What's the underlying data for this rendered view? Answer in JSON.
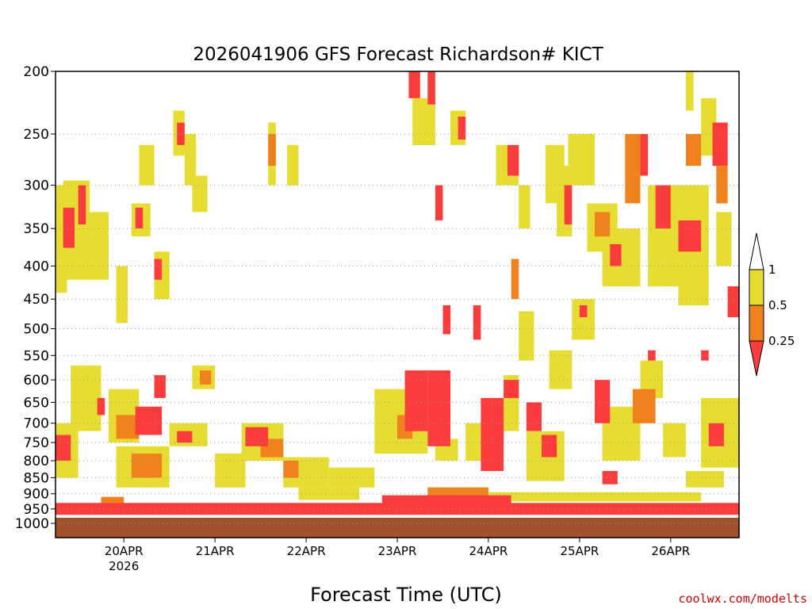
{
  "chart_data": {
    "type": "heatmap",
    "title": "2026041906 GFS Forecast Richardson# KICT",
    "xlabel": "Forecast Time (UTC)",
    "ylabel": "",
    "credit": "coolwx.com/modelts",
    "y_ticks": [
      "200",
      "250",
      "300",
      "350",
      "400",
      "450",
      "500",
      "550",
      "600",
      "650",
      "700",
      "750",
      "800",
      "850",
      "900",
      "950",
      "1000"
    ],
    "x_ticks": [
      {
        "label": "20APR",
        "sublabel": "2026",
        "hour": 24
      },
      {
        "label": "21APR",
        "sublabel": "",
        "hour": 48
      },
      {
        "label": "22APR",
        "sublabel": "",
        "hour": 72
      },
      {
        "label": "23APR",
        "sublabel": "",
        "hour": 96
      },
      {
        "label": "24APR",
        "sublabel": "",
        "hour": 120
      },
      {
        "label": "25APR",
        "sublabel": "",
        "hour": 144
      },
      {
        "label": "26APR",
        "sublabel": "",
        "hour": 168
      }
    ],
    "x_range_hours": [
      6,
      186
    ],
    "y_range_hpa": [
      200,
      1000
    ],
    "grid": "dotted at labeled pressure levels",
    "colorbar": {
      "placement": "right",
      "ticks": [
        "1",
        "0.5",
        "0.25"
      ],
      "bins": [
        {
          "range": "> 1",
          "color": "#ffffff"
        },
        {
          "range": "0.5 - 1",
          "color": "#e6dc32"
        },
        {
          "range": "0.25 - 0.5",
          "color": "#f0821e"
        },
        {
          "range": "< 0.25",
          "color": "#fa3c3c"
        }
      ]
    },
    "colors": {
      "surface": "#a0522d",
      "ri_0_5_to_1": "#e6dc32",
      "ri_0_25_to_0_5": "#f0821e",
      "ri_below_0_25": "#fa3c3c",
      "credit_text": "#cc0000"
    },
    "regions": [
      {
        "bin": "0.5 - 1",
        "hours": [
          6,
          9
        ],
        "hpa": [
          300,
          440
        ]
      },
      {
        "bin": "0.5 - 1",
        "hours": [
          8,
          15
        ],
        "hpa": [
          295,
          420
        ]
      },
      {
        "bin": "< 0.25",
        "hours": [
          8,
          11
        ],
        "hpa": [
          325,
          375
        ]
      },
      {
        "bin": "< 0.25",
        "hours": [
          12,
          14
        ],
        "hpa": [
          300,
          345
        ]
      },
      {
        "bin": "0.5 - 1",
        "hours": [
          15,
          20
        ],
        "hpa": [
          330,
          420
        ]
      },
      {
        "bin": "0.5 - 1",
        "hours": [
          22,
          25
        ],
        "hpa": [
          400,
          490
        ]
      },
      {
        "bin": "0.5 - 1",
        "hours": [
          26,
          31
        ],
        "hpa": [
          320,
          360
        ]
      },
      {
        "bin": "< 0.25",
        "hours": [
          27,
          29
        ],
        "hpa": [
          325,
          350
        ]
      },
      {
        "bin": "0.5 - 1",
        "hours": [
          28,
          32
        ],
        "hpa": [
          260,
          300
        ]
      },
      {
        "bin": "0.5 - 1",
        "hours": [
          32,
          36
        ],
        "hpa": [
          380,
          450
        ]
      },
      {
        "bin": "< 0.25",
        "hours": [
          32,
          34
        ],
        "hpa": [
          390,
          420
        ]
      },
      {
        "bin": "0.5 - 1",
        "hours": [
          37,
          40
        ],
        "hpa": [
          230,
          270
        ]
      },
      {
        "bin": "< 0.25",
        "hours": [
          38,
          40
        ],
        "hpa": [
          240,
          260
        ]
      },
      {
        "bin": "0.5 - 1",
        "hours": [
          40,
          43
        ],
        "hpa": [
          250,
          300
        ]
      },
      {
        "bin": "0.5 - 1",
        "hours": [
          42,
          46
        ],
        "hpa": [
          290,
          330
        ]
      },
      {
        "bin": "0.5 - 1",
        "hours": [
          62,
          64
        ],
        "hpa": [
          240,
          300
        ]
      },
      {
        "bin": "0.25 - 0.5",
        "hours": [
          62,
          64
        ],
        "hpa": [
          250,
          280
        ]
      },
      {
        "bin": "0.5 - 1",
        "hours": [
          67,
          70
        ],
        "hpa": [
          260,
          300
        ]
      },
      {
        "bin": "< 0.25",
        "hours": [
          99,
          102
        ],
        "hpa": [
          200,
          220
        ]
      },
      {
        "bin": "< 0.25",
        "hours": [
          104,
          106
        ],
        "hpa": [
          200,
          225
        ]
      },
      {
        "bin": "0.5 - 1",
        "hours": [
          100,
          106
        ],
        "hpa": [
          220,
          260
        ]
      },
      {
        "bin": "< 0.25",
        "hours": [
          106,
          108
        ],
        "hpa": [
          300,
          340
        ]
      },
      {
        "bin": "0.5 - 1",
        "hours": [
          110,
          114
        ],
        "hpa": [
          230,
          260
        ]
      },
      {
        "bin": "< 0.25",
        "hours": [
          112,
          114
        ],
        "hpa": [
          235,
          255
        ]
      },
      {
        "bin": "0.5 - 1",
        "hours": [
          122,
          128
        ],
        "hpa": [
          260,
          300
        ]
      },
      {
        "bin": "< 0.25",
        "hours": [
          125,
          128
        ],
        "hpa": [
          260,
          290
        ]
      },
      {
        "bin": "0.5 - 1",
        "hours": [
          128,
          131
        ],
        "hpa": [
          300,
          350
        ]
      },
      {
        "bin": "0.5 - 1",
        "hours": [
          135,
          140
        ],
        "hpa": [
          260,
          320
        ]
      },
      {
        "bin": "0.5 - 1",
        "hours": [
          138,
          142
        ],
        "hpa": [
          280,
          360
        ]
      },
      {
        "bin": "< 0.25",
        "hours": [
          140,
          142
        ],
        "hpa": [
          300,
          345
        ]
      },
      {
        "bin": "0.5 - 1",
        "hours": [
          141,
          148
        ],
        "hpa": [
          250,
          300
        ]
      },
      {
        "bin": "0.5 - 1",
        "hours": [
          146,
          154
        ],
        "hpa": [
          320,
          380
        ]
      },
      {
        "bin": "0.25 - 0.5",
        "hours": [
          148,
          152
        ],
        "hpa": [
          330,
          360
        ]
      },
      {
        "bin": "0.5 - 1",
        "hours": [
          150,
          160
        ],
        "hpa": [
          350,
          430
        ]
      },
      {
        "bin": "< 0.25",
        "hours": [
          152,
          155
        ],
        "hpa": [
          370,
          400
        ]
      },
      {
        "bin": "0.25 - 0.5",
        "hours": [
          156,
          160
        ],
        "hpa": [
          250,
          320
        ]
      },
      {
        "bin": "< 0.25",
        "hours": [
          160,
          162
        ],
        "hpa": [
          250,
          290
        ]
      },
      {
        "bin": "0.5 - 1",
        "hours": [
          162,
          170
        ],
        "hpa": [
          300,
          430
        ]
      },
      {
        "bin": "< 0.25",
        "hours": [
          164,
          168
        ],
        "hpa": [
          300,
          350
        ]
      },
      {
        "bin": "0.5 - 1",
        "hours": [
          170,
          178
        ],
        "hpa": [
          300,
          460
        ]
      },
      {
        "bin": "< 0.25",
        "hours": [
          170,
          176
        ],
        "hpa": [
          340,
          380
        ]
      },
      {
        "bin": "0.25 - 0.5",
        "hours": [
          172,
          176
        ],
        "hpa": [
          250,
          280
        ]
      },
      {
        "bin": "0.5 - 1",
        "hours": [
          172,
          174
        ],
        "hpa": [
          200,
          230
        ]
      },
      {
        "bin": "0.5 - 1",
        "hours": [
          176,
          180
        ],
        "hpa": [
          220,
          270
        ]
      },
      {
        "bin": "< 0.25",
        "hours": [
          179,
          183
        ],
        "hpa": [
          240,
          280
        ]
      },
      {
        "bin": "0.25 - 0.5",
        "hours": [
          180,
          183
        ],
        "hpa": [
          280,
          320
        ]
      },
      {
        "bin": "0.5 - 1",
        "hours": [
          180,
          184
        ],
        "hpa": [
          330,
          400
        ]
      },
      {
        "bin": "< 0.25",
        "hours": [
          183,
          186
        ],
        "hpa": [
          430,
          480
        ]
      },
      {
        "bin": "< 0.25",
        "hours": [
          6,
          10
        ],
        "hpa": [
          730,
          800
        ]
      },
      {
        "bin": "0.5 - 1",
        "hours": [
          6,
          12
        ],
        "hpa": [
          700,
          850
        ]
      },
      {
        "bin": "0.5 - 1",
        "hours": [
          10,
          18
        ],
        "hpa": [
          570,
          720
        ]
      },
      {
        "bin": "< 0.25",
        "hours": [
          17,
          19
        ],
        "hpa": [
          640,
          680
        ]
      },
      {
        "bin": "0.5 - 1",
        "hours": [
          20,
          28
        ],
        "hpa": [
          620,
          750
        ]
      },
      {
        "bin": "0.25 - 0.5",
        "hours": [
          22,
          28
        ],
        "hpa": [
          680,
          740
        ]
      },
      {
        "bin": "< 0.25",
        "hours": [
          27,
          34
        ],
        "hpa": [
          660,
          730
        ]
      },
      {
        "bin": "0.5 - 1",
        "hours": [
          22,
          36
        ],
        "hpa": [
          760,
          880
        ]
      },
      {
        "bin": "0.25 - 0.5",
        "hours": [
          26,
          34
        ],
        "hpa": [
          780,
          850
        ]
      },
      {
        "bin": "< 0.25",
        "hours": [
          32,
          35
        ],
        "hpa": [
          590,
          640
        ]
      },
      {
        "bin": "0.5 - 1",
        "hours": [
          36,
          46
        ],
        "hpa": [
          700,
          760
        ]
      },
      {
        "bin": "< 0.25",
        "hours": [
          38,
          42
        ],
        "hpa": [
          720,
          750
        ]
      },
      {
        "bin": "0.5 - 1",
        "hours": [
          42,
          48
        ],
        "hpa": [
          570,
          620
        ]
      },
      {
        "bin": "0.25 - 0.5",
        "hours": [
          44,
          47
        ],
        "hpa": [
          580,
          610
        ]
      },
      {
        "bin": "0.5 - 1",
        "hours": [
          48,
          56
        ],
        "hpa": [
          780,
          880
        ]
      },
      {
        "bin": "< 0.25",
        "hours": [
          56,
          62
        ],
        "hpa": [
          710,
          760
        ]
      },
      {
        "bin": "0.5 - 1",
        "hours": [
          55,
          66
        ],
        "hpa": [
          700,
          800
        ]
      },
      {
        "bin": "0.25 - 0.5",
        "hours": [
          60,
          66
        ],
        "hpa": [
          740,
          790
        ]
      },
      {
        "bin": "0.5 - 1",
        "hours": [
          66,
          78
        ],
        "hpa": [
          790,
          880
        ]
      },
      {
        "bin": "0.25 - 0.5",
        "hours": [
          66,
          70
        ],
        "hpa": [
          800,
          850
        ]
      },
      {
        "bin": "0.5 - 1",
        "hours": [
          78,
          90
        ],
        "hpa": [
          820,
          880
        ]
      },
      {
        "bin": "0.5 - 1",
        "hours": [
          90,
          104
        ],
        "hpa": [
          620,
          780
        ]
      },
      {
        "bin": "< 0.25",
        "hours": [
          98,
          104
        ],
        "hpa": [
          580,
          720
        ]
      },
      {
        "bin": "0.25 - 0.5",
        "hours": [
          96,
          100
        ],
        "hpa": [
          680,
          740
        ]
      },
      {
        "bin": "< 0.25",
        "hours": [
          104,
          110
        ],
        "hpa": [
          580,
          760
        ]
      },
      {
        "bin": "0.5 - 1",
        "hours": [
          106,
          112
        ],
        "hpa": [
          740,
          800
        ]
      },
      {
        "bin": "< 0.25",
        "hours": [
          108,
          110
        ],
        "hpa": [
          460,
          510
        ]
      },
      {
        "bin": "0.5 - 1",
        "hours": [
          114,
          118
        ],
        "hpa": [
          700,
          800
        ]
      },
      {
        "bin": "< 0.25",
        "hours": [
          116,
          118
        ],
        "hpa": [
          460,
          520
        ]
      },
      {
        "bin": "< 0.25",
        "hours": [
          118,
          124
        ],
        "hpa": [
          640,
          830
        ]
      },
      {
        "bin": "0.25 - 0.5",
        "hours": [
          120,
          124
        ],
        "hpa": [
          680,
          760
        ]
      },
      {
        "bin": "0.5 - 1",
        "hours": [
          124,
          128
        ],
        "hpa": [
          590,
          720
        ]
      },
      {
        "bin": "< 0.25",
        "hours": [
          124,
          128
        ],
        "hpa": [
          600,
          640
        ]
      },
      {
        "bin": "0.25 - 0.5",
        "hours": [
          126,
          128
        ],
        "hpa": [
          390,
          450
        ]
      },
      {
        "bin": "0.5 - 1",
        "hours": [
          128,
          132
        ],
        "hpa": [
          470,
          560
        ]
      },
      {
        "bin": "< 0.25",
        "hours": [
          130,
          134
        ],
        "hpa": [
          650,
          720
        ]
      },
      {
        "bin": "0.5 - 1",
        "hours": [
          130,
          140
        ],
        "hpa": [
          720,
          860
        ]
      },
      {
        "bin": "< 0.25",
        "hours": [
          134,
          138
        ],
        "hpa": [
          730,
          790
        ]
      },
      {
        "bin": "0.5 - 1",
        "hours": [
          136,
          142
        ],
        "hpa": [
          540,
          620
        ]
      },
      {
        "bin": "0.5 - 1",
        "hours": [
          142,
          148
        ],
        "hpa": [
          450,
          520
        ]
      },
      {
        "bin": "< 0.25",
        "hours": [
          144,
          146
        ],
        "hpa": [
          460,
          480
        ]
      },
      {
        "bin": "< 0.25",
        "hours": [
          148,
          152
        ],
        "hpa": [
          600,
          700
        ]
      },
      {
        "bin": "0.5 - 1",
        "hours": [
          150,
          160
        ],
        "hpa": [
          660,
          800
        ]
      },
      {
        "bin": "< 0.25",
        "hours": [
          150,
          154
        ],
        "hpa": [
          830,
          870
        ]
      },
      {
        "bin": "0.25 - 0.5",
        "hours": [
          158,
          164
        ],
        "hpa": [
          620,
          700
        ]
      },
      {
        "bin": "0.5 - 1",
        "hours": [
          160,
          166
        ],
        "hpa": [
          560,
          640
        ]
      },
      {
        "bin": "< 0.25",
        "hours": [
          162,
          164
        ],
        "hpa": [
          540,
          560
        ]
      },
      {
        "bin": "0.5 - 1",
        "hours": [
          166,
          172
        ],
        "hpa": [
          700,
          790
        ]
      },
      {
        "bin": "0.5 - 1",
        "hours": [
          172,
          182
        ],
        "hpa": [
          830,
          880
        ]
      },
      {
        "bin": "0.5 - 1",
        "hours": [
          176,
          186
        ],
        "hpa": [
          640,
          820
        ]
      },
      {
        "bin": "< 0.25",
        "hours": [
          178,
          182
        ],
        "hpa": [
          700,
          760
        ]
      },
      {
        "bin": "< 0.25",
        "hours": [
          176,
          178
        ],
        "hpa": [
          540,
          560
        ]
      },
      {
        "bin": "0.5 - 1",
        "hours": [
          70,
          86
        ],
        "hpa": [
          880,
          920
        ]
      },
      {
        "bin": "0.5 - 1",
        "hours": [
          110,
          176
        ],
        "hpa": [
          895,
          925
        ]
      },
      {
        "bin": "< 0.25",
        "hours": [
          6,
          186
        ],
        "hpa": [
          930,
          970
        ]
      },
      {
        "bin": "0.25 - 0.5",
        "hours": [
          18,
          24
        ],
        "hpa": [
          910,
          935
        ]
      },
      {
        "bin": "< 0.25",
        "hours": [
          92,
          126
        ],
        "hpa": [
          905,
          935
        ]
      },
      {
        "bin": "0.25 - 0.5",
        "hours": [
          104,
          120
        ],
        "hpa": [
          880,
          910
        ]
      }
    ]
  }
}
